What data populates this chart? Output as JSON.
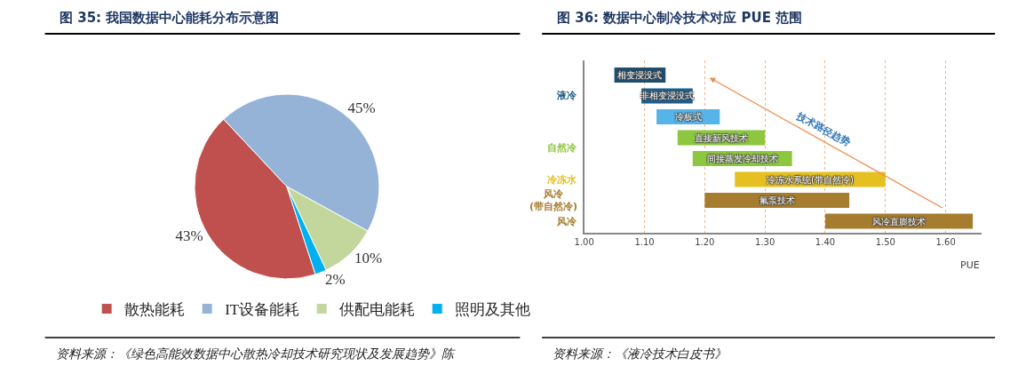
{
  "chart_data": [
    {
      "type": "pie",
      "title": "图 35: 我国数据中心能耗分布示意图",
      "categories": [
        "散热能耗",
        "IT设备能耗",
        "供配电能耗",
        "照明及其他"
      ],
      "values": [
        43,
        45,
        10,
        2
      ],
      "colors": [
        "#c0504d",
        "#95b3d7",
        "#c3d69b",
        "#00b0f0"
      ],
      "value_labels": [
        "43%",
        "45%",
        "10%",
        "2%"
      ],
      "legend": "bottom",
      "annotations": [
        "资料来源：《绿色高能效数据中心散热冷却技术研究现状及发展趋势》陈"
      ]
    },
    {
      "type": "bar",
      "orientation": "horizontal",
      "title": "图 36: 数据中心制冷技术对应 PUE 范围",
      "categories": [
        "相变浸没式",
        "非相变浸没式",
        "冷板式",
        "直接新风技术",
        "间接蒸发冷却技术",
        "冷冻水系统(带自然冷)",
        "氟泵技术",
        "风冷直膨技术"
      ],
      "base": [
        1.05,
        1.095,
        1.12,
        1.155,
        1.18,
        1.25,
        1.2,
        1.4
      ],
      "values": [
        0.085,
        0.085,
        0.105,
        0.145,
        0.165,
        0.25,
        0.24,
        0.245
      ],
      "colors": [
        "#1f4e6e",
        "#1f5f8b",
        "#56b4e9",
        "#8dc63f",
        "#8dc63f",
        "#e6c020",
        "#a67c2e",
        "#a67c2e"
      ],
      "xlim": [
        1.0,
        1.66
      ],
      "xticks": [
        {
          "value": 1.0,
          "label": "1.00"
        },
        {
          "value": 1.1,
          "label": "1.10"
        },
        {
          "value": 1.2,
          "label": "1.20"
        },
        {
          "value": 1.3,
          "label": "1.30"
        },
        {
          "value": 1.4,
          "label": "1.40"
        },
        {
          "value": 1.5,
          "label": "1.50"
        },
        {
          "value": 1.6,
          "label": "1.60"
        }
      ],
      "xlabel": "PUE",
      "grid": "x",
      "tick_labels": "x",
      "annotations": [
        "液冷",
        "自然冷",
        "冷冻水",
        "风冷\n(带自然冷)",
        "风冷",
        "技术路径趋势",
        "资料来源：《液冷技术白皮书》"
      ]
    }
  ]
}
